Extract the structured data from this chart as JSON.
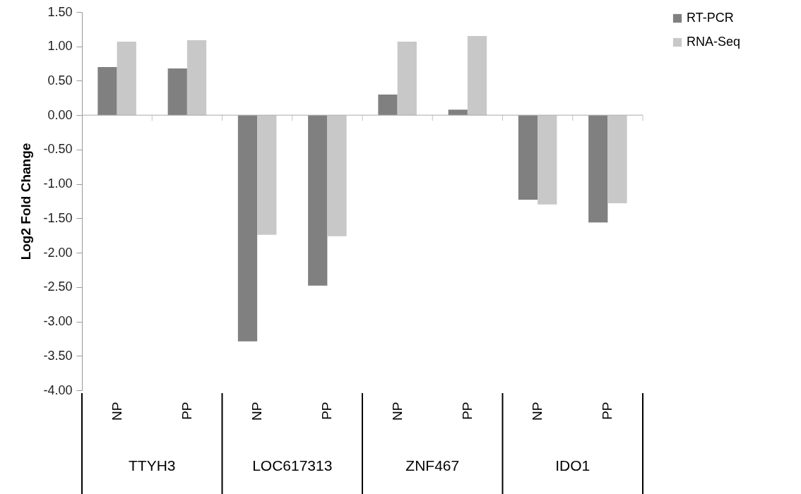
{
  "chart_data": {
    "type": "bar",
    "ylabel": "Log2 Fold Change",
    "categories": [
      "NP",
      "PP",
      "NP",
      "PP",
      "NP",
      "PP",
      "NP",
      "PP"
    ],
    "annotations": [
      "TTYH3",
      "LOC617313",
      "ZNF467",
      "IDO1"
    ],
    "series": [
      {
        "name": "RT-PCR",
        "color": "#808080",
        "values": [
          0.7,
          0.68,
          -3.29,
          -2.48,
          0.3,
          0.08,
          -1.23,
          -1.56
        ]
      },
      {
        "name": "RNA-Seq",
        "color": "#c8c8c8",
        "values": [
          1.07,
          1.09,
          -1.74,
          -1.76,
          1.07,
          1.15,
          -1.3,
          -1.28
        ]
      }
    ],
    "ylim": [
      -4,
      1.5
    ],
    "yticks": [
      {
        "value": 1.5,
        "label": "1.50"
      },
      {
        "value": 1,
        "label": "1.00"
      },
      {
        "value": 0.5,
        "label": "0.50"
      },
      {
        "value": 0,
        "label": "0.00"
      },
      {
        "value": -0.5,
        "label": "-0.50"
      },
      {
        "value": -1,
        "label": "-1.00"
      },
      {
        "value": -1.5,
        "label": "-1.50"
      },
      {
        "value": -2,
        "label": "-2.00"
      },
      {
        "value": -2.5,
        "label": "-2.50"
      },
      {
        "value": -3,
        "label": "-3.00"
      },
      {
        "value": -3.5,
        "label": "-3.50"
      },
      {
        "value": -4,
        "label": "-4.00"
      }
    ],
    "legend": "right"
  }
}
